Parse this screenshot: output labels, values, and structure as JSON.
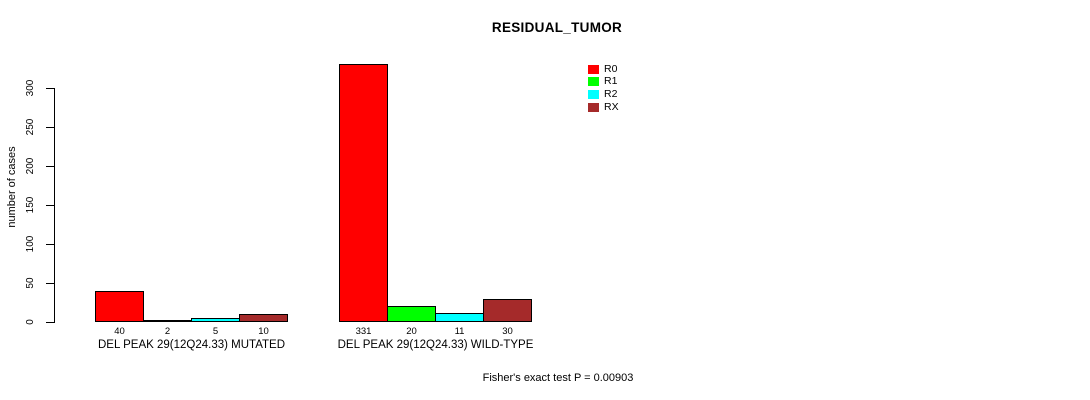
{
  "chart_data": {
    "type": "bar",
    "title": "RESIDUAL_TUMOR",
    "ylabel": "number of cases",
    "ylim": [
      0,
      331
    ],
    "yticks": [
      0,
      50,
      100,
      150,
      200,
      250,
      300
    ],
    "grid": false,
    "legend_position": "top-right",
    "series_names": [
      "R0",
      "R1",
      "R2",
      "RX"
    ],
    "series_colors": [
      "#FF0000",
      "#00FF00",
      "#00FFFF",
      "#A52A2A"
    ],
    "groups": [
      {
        "label": "DEL PEAK 29(12Q24.33) MUTATED",
        "values": [
          40,
          2,
          5,
          10
        ]
      },
      {
        "label": "DEL PEAK 29(12Q24.33) WILD-TYPE",
        "values": [
          331,
          20,
          11,
          30
        ]
      }
    ],
    "annotation": "Fisher's exact test P = 0.00903"
  }
}
